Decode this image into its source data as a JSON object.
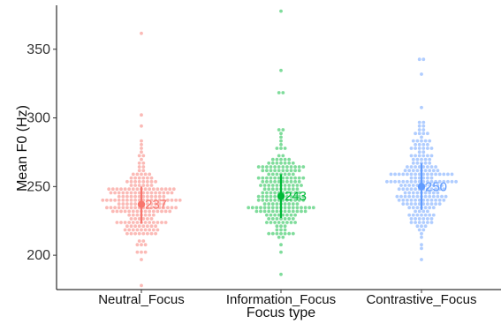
{
  "chart_data": {
    "type": "scatter",
    "subtype": "beeswarm-with-mean-errorbar",
    "title": "",
    "xlabel": "Focus type",
    "ylabel": "Mean F0 (Hz)",
    "ylim": [
      175,
      382
    ],
    "yticks": [
      200,
      250,
      300,
      350
    ],
    "grid": false,
    "legend": "none",
    "categories": [
      "Neutral_Focus",
      "Information_Focus",
      "Contrastive_Focus"
    ],
    "series": [
      {
        "category": "Neutral_Focus",
        "color": "#F8766D",
        "mean": 237,
        "mean_label": "237",
        "errorbar": [
          223,
          250
        ],
        "range": [
          178,
          362
        ]
      },
      {
        "category": "Information_Focus",
        "color": "#00BA38",
        "mean": 243,
        "mean_label": "243",
        "errorbar": [
          227,
          259
        ],
        "range": [
          186,
          378
        ]
      },
      {
        "category": "Contrastive_Focus",
        "color": "#619CFF",
        "mean": 250,
        "mean_label": "250",
        "errorbar": [
          233,
          267
        ],
        "range": [
          196,
          343
        ]
      }
    ]
  }
}
